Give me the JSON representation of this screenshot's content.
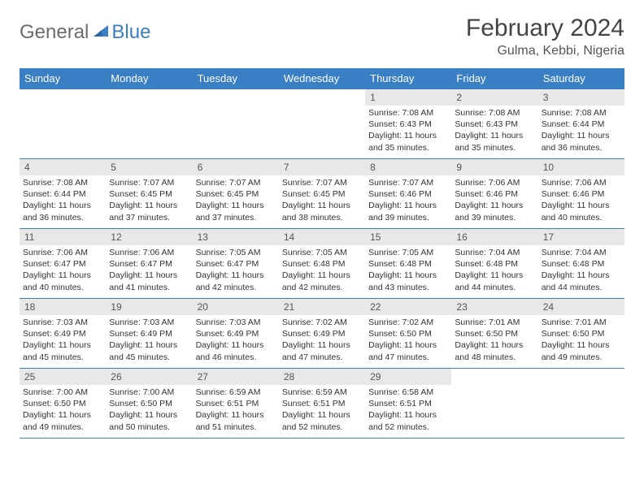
{
  "brand": {
    "part1": "General",
    "part2": "Blue"
  },
  "title": "February 2024",
  "location": "Gulma, Kebbi, Nigeria",
  "colors": {
    "header_bg": "#3a7fc4",
    "header_fg": "#ffffff",
    "daynum_bg": "#e8e8e8",
    "border": "#3a7fc4",
    "text": "#333333",
    "logo_gray": "#6b6b6b",
    "logo_blue": "#3a7fc4",
    "page_bg": "#ffffff"
  },
  "typography": {
    "title_fontsize": 30,
    "location_fontsize": 16,
    "weekday_fontsize": 13,
    "daynum_fontsize": 12,
    "info_fontsize": 10.5
  },
  "weekdays": [
    "Sunday",
    "Monday",
    "Tuesday",
    "Wednesday",
    "Thursday",
    "Friday",
    "Saturday"
  ],
  "weeks": [
    [
      null,
      null,
      null,
      null,
      {
        "n": "1",
        "sunrise": "7:08 AM",
        "sunset": "6:43 PM",
        "daylight": "11 hours and 35 minutes."
      },
      {
        "n": "2",
        "sunrise": "7:08 AM",
        "sunset": "6:43 PM",
        "daylight": "11 hours and 35 minutes."
      },
      {
        "n": "3",
        "sunrise": "7:08 AM",
        "sunset": "6:44 PM",
        "daylight": "11 hours and 36 minutes."
      }
    ],
    [
      {
        "n": "4",
        "sunrise": "7:08 AM",
        "sunset": "6:44 PM",
        "daylight": "11 hours and 36 minutes."
      },
      {
        "n": "5",
        "sunrise": "7:07 AM",
        "sunset": "6:45 PM",
        "daylight": "11 hours and 37 minutes."
      },
      {
        "n": "6",
        "sunrise": "7:07 AM",
        "sunset": "6:45 PM",
        "daylight": "11 hours and 37 minutes."
      },
      {
        "n": "7",
        "sunrise": "7:07 AM",
        "sunset": "6:45 PM",
        "daylight": "11 hours and 38 minutes."
      },
      {
        "n": "8",
        "sunrise": "7:07 AM",
        "sunset": "6:46 PM",
        "daylight": "11 hours and 39 minutes."
      },
      {
        "n": "9",
        "sunrise": "7:06 AM",
        "sunset": "6:46 PM",
        "daylight": "11 hours and 39 minutes."
      },
      {
        "n": "10",
        "sunrise": "7:06 AM",
        "sunset": "6:46 PM",
        "daylight": "11 hours and 40 minutes."
      }
    ],
    [
      {
        "n": "11",
        "sunrise": "7:06 AM",
        "sunset": "6:47 PM",
        "daylight": "11 hours and 40 minutes."
      },
      {
        "n": "12",
        "sunrise": "7:06 AM",
        "sunset": "6:47 PM",
        "daylight": "11 hours and 41 minutes."
      },
      {
        "n": "13",
        "sunrise": "7:05 AM",
        "sunset": "6:47 PM",
        "daylight": "11 hours and 42 minutes."
      },
      {
        "n": "14",
        "sunrise": "7:05 AM",
        "sunset": "6:48 PM",
        "daylight": "11 hours and 42 minutes."
      },
      {
        "n": "15",
        "sunrise": "7:05 AM",
        "sunset": "6:48 PM",
        "daylight": "11 hours and 43 minutes."
      },
      {
        "n": "16",
        "sunrise": "7:04 AM",
        "sunset": "6:48 PM",
        "daylight": "11 hours and 44 minutes."
      },
      {
        "n": "17",
        "sunrise": "7:04 AM",
        "sunset": "6:48 PM",
        "daylight": "11 hours and 44 minutes."
      }
    ],
    [
      {
        "n": "18",
        "sunrise": "7:03 AM",
        "sunset": "6:49 PM",
        "daylight": "11 hours and 45 minutes."
      },
      {
        "n": "19",
        "sunrise": "7:03 AM",
        "sunset": "6:49 PM",
        "daylight": "11 hours and 45 minutes."
      },
      {
        "n": "20",
        "sunrise": "7:03 AM",
        "sunset": "6:49 PM",
        "daylight": "11 hours and 46 minutes."
      },
      {
        "n": "21",
        "sunrise": "7:02 AM",
        "sunset": "6:49 PM",
        "daylight": "11 hours and 47 minutes."
      },
      {
        "n": "22",
        "sunrise": "7:02 AM",
        "sunset": "6:50 PM",
        "daylight": "11 hours and 47 minutes."
      },
      {
        "n": "23",
        "sunrise": "7:01 AM",
        "sunset": "6:50 PM",
        "daylight": "11 hours and 48 minutes."
      },
      {
        "n": "24",
        "sunrise": "7:01 AM",
        "sunset": "6:50 PM",
        "daylight": "11 hours and 49 minutes."
      }
    ],
    [
      {
        "n": "25",
        "sunrise": "7:00 AM",
        "sunset": "6:50 PM",
        "daylight": "11 hours and 49 minutes."
      },
      {
        "n": "26",
        "sunrise": "7:00 AM",
        "sunset": "6:50 PM",
        "daylight": "11 hours and 50 minutes."
      },
      {
        "n": "27",
        "sunrise": "6:59 AM",
        "sunset": "6:51 PM",
        "daylight": "11 hours and 51 minutes."
      },
      {
        "n": "28",
        "sunrise": "6:59 AM",
        "sunset": "6:51 PM",
        "daylight": "11 hours and 52 minutes."
      },
      {
        "n": "29",
        "sunrise": "6:58 AM",
        "sunset": "6:51 PM",
        "daylight": "11 hours and 52 minutes."
      },
      null,
      null
    ]
  ],
  "labels": {
    "sunrise": "Sunrise:",
    "sunset": "Sunset:",
    "daylight": "Daylight:"
  }
}
